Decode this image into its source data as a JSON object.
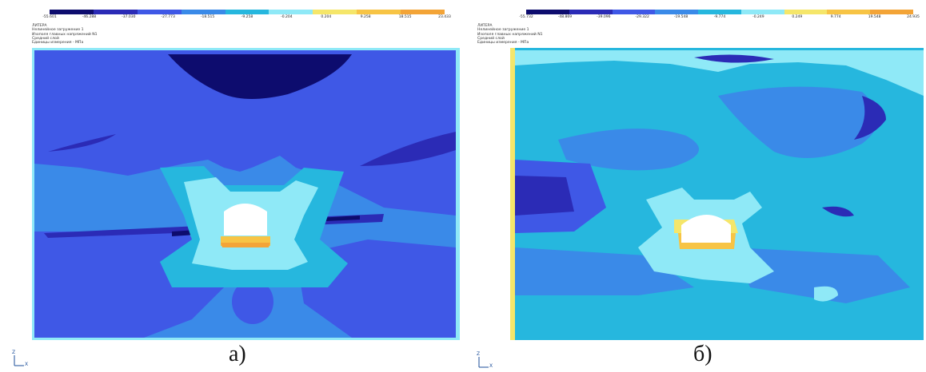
{
  "panels": [
    {
      "id": "a",
      "caption": "а)",
      "scale": {
        "colors": [
          "#0d0c6e",
          "#2b2bb6",
          "#3f58e6",
          "#3a8ae8",
          "#26b7de",
          "#8fe9f7",
          "#f5e66a",
          "#f7c445",
          "#f3a437"
        ],
        "ticks": [
          "-55.601",
          "-46.288",
          "-37.030",
          "-27.773",
          "-18.515",
          "-9.258",
          "-0.204",
          "0.204",
          "9.258",
          "18.515",
          "23.433"
        ]
      },
      "info": [
        "ЛИТЕРА",
        "Нелинейное загружение 1",
        "Изополя главных напряжений N1",
        "Средний слой",
        "Единицы измерения - МПа"
      ],
      "axis": {
        "z": "Z",
        "x": "X"
      }
    },
    {
      "id": "b",
      "caption": "б)",
      "scale": {
        "colors": [
          "#0d0c6e",
          "#2b2bb6",
          "#3f58e6",
          "#3a8ae8",
          "#26b7de",
          "#8fe9f7",
          "#f5e66a",
          "#f7c445",
          "#f3a437"
        ],
        "ticks": [
          "-55.732",
          "-48.869",
          "-39.096",
          "-29.322",
          "-19.548",
          "-9.774",
          "-0.249",
          "0.249",
          "9.774",
          "19.548",
          "24.935"
        ]
      },
      "info": [
        "ЛИТЕРА",
        "Нелинейное загружение 1",
        "Изополя главных напряжений N1",
        "Средний слой",
        "Единицы измерения - МПа"
      ],
      "axis": {
        "z": "Z",
        "x": "X"
      }
    }
  ]
}
